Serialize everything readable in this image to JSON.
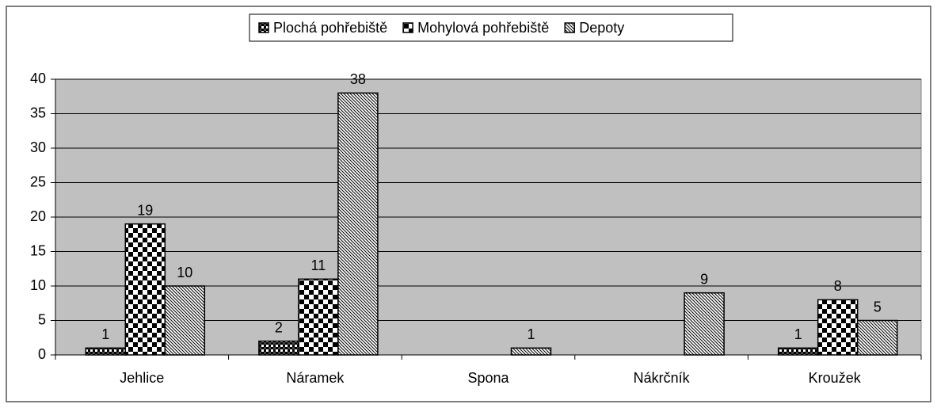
{
  "chart_data": {
    "type": "bar",
    "categories": [
      "Jehlice",
      "Náramek",
      "Spona",
      "Nákrčník",
      "Kroužek"
    ],
    "series": [
      {
        "name": "Plochá pohřebiště",
        "color": "#000000",
        "pattern": "dense-check",
        "values": [
          1,
          2,
          null,
          null,
          1
        ]
      },
      {
        "name": "Mohylová pohřebiště",
        "color": "#000000",
        "pattern": "check",
        "values": [
          19,
          11,
          null,
          null,
          8
        ]
      },
      {
        "name": "Depoty",
        "color": "#000000",
        "pattern": "diagonal",
        "values": [
          10,
          38,
          1,
          9,
          5
        ]
      }
    ],
    "ylim": [
      0,
      40
    ],
    "yticks": [
      0,
      5,
      10,
      15,
      20,
      25,
      30,
      35,
      40
    ],
    "grid": true,
    "legend": "top",
    "plot_background": "#c0c0c0"
  }
}
